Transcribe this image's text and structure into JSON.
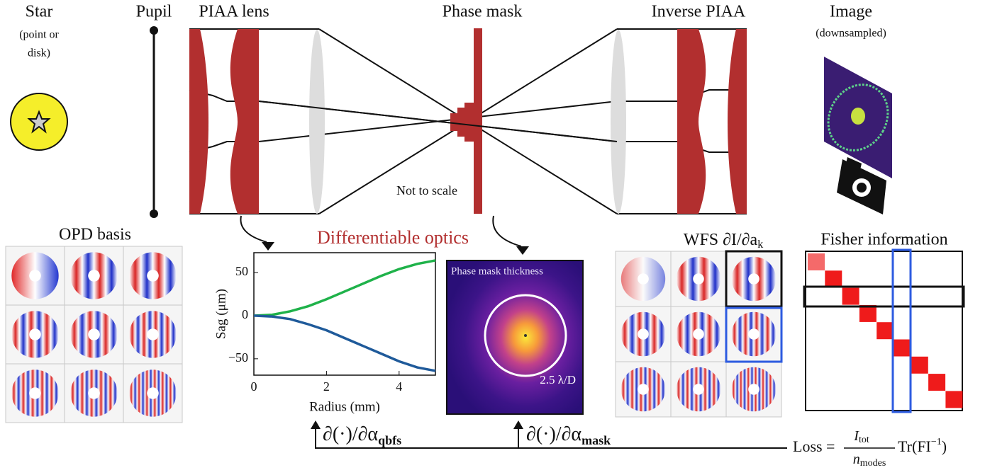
{
  "optics": {
    "star": {
      "title": "Star",
      "note_lines": [
        "(point or",
        "disk)"
      ]
    },
    "pupil": {
      "title": "Pupil"
    },
    "piaa_lens": {
      "title": "PIAA lens"
    },
    "phase_mask": {
      "title": "Phase mask",
      "note": "Not to scale"
    },
    "inverse_piaa": {
      "title": "Inverse PIAA"
    },
    "image": {
      "title": "Image",
      "note": "(downsampled)"
    }
  },
  "opd_basis": {
    "title": "OPD basis"
  },
  "differentiable_optics": {
    "title": "Differentiable optics"
  },
  "sag_plot": {
    "type": "line",
    "xlabel": "Radius (mm)",
    "ylabel": "Sag (μm)",
    "x": [
      0,
      0.5,
      1,
      1.5,
      2,
      2.5,
      3,
      3.5,
      4,
      4.5,
      5
    ],
    "series": [
      {
        "color": "#1fb24a",
        "values": [
          0,
          1,
          5,
          11,
          19,
          28,
          37,
          46,
          54,
          60,
          64
        ]
      },
      {
        "color": "#1f5a9a",
        "values": [
          0,
          -1,
          -4,
          -10,
          -17,
          -26,
          -35,
          -44,
          -53,
          -60,
          -64
        ]
      }
    ],
    "xlim": [
      0,
      5
    ],
    "ylim": [
      -69,
      73
    ],
    "xticks": [
      0,
      2,
      4
    ],
    "yticks": [
      {
        "value": -50,
        "label": "−50"
      },
      0,
      50
    ]
  },
  "phase_mask_map": {
    "title": "Phase mask thickness",
    "radius_label": "2.5 λ/D"
  },
  "wfs": {
    "title": "WFS ∂I/∂a",
    "title_sub": "k"
  },
  "fisher": {
    "title": "Fisher information"
  },
  "gradients": [
    {
      "text": "∂(·)/∂α",
      "sub": "qbfs"
    },
    {
      "text": "∂(·)/∂α",
      "sub": "mask"
    }
  ],
  "loss": {
    "lhs": "Loss =",
    "numerator": "I",
    "numerator_sub": "tot",
    "denominator": "n",
    "denominator_sub": "modes",
    "rhs": "Tr(FI",
    "rhs_sup": "−1",
    "rhs_end": ")"
  }
}
